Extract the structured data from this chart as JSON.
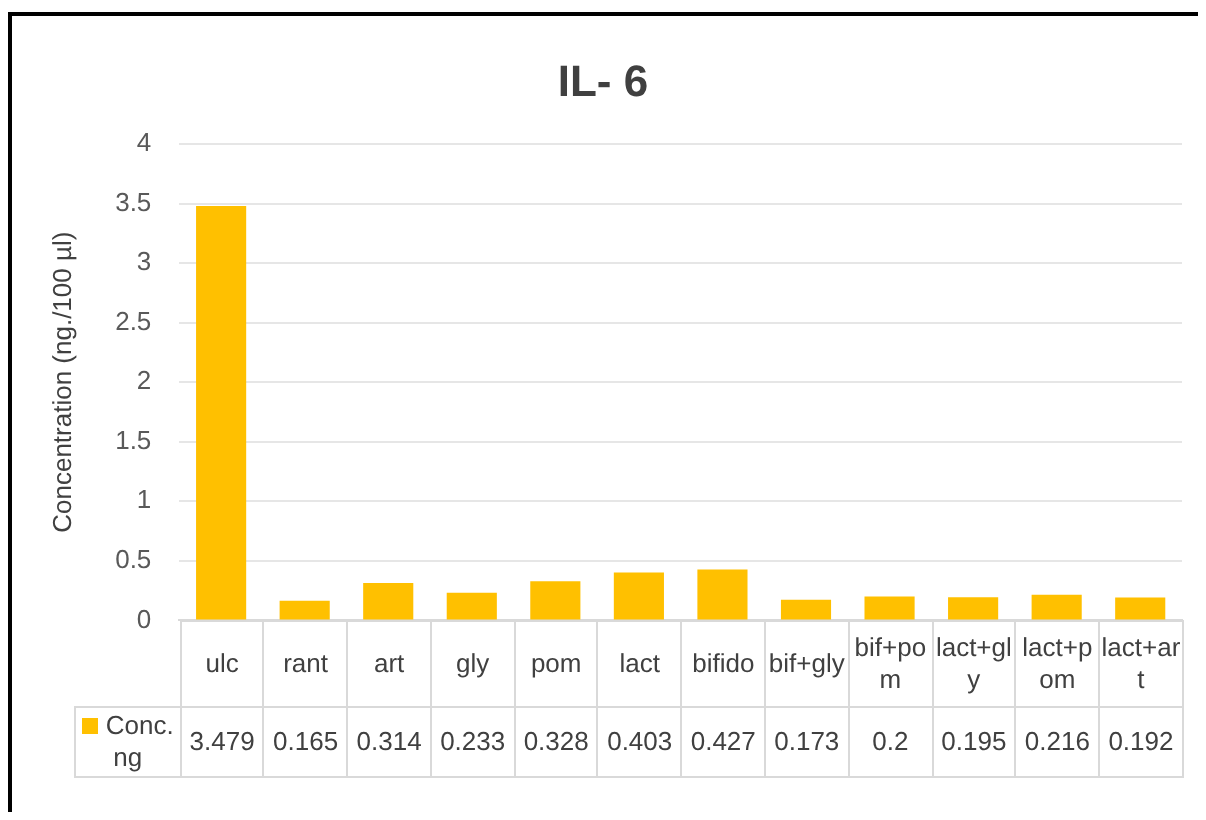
{
  "chart_data": {
    "type": "bar",
    "title": "IL- 6",
    "ylabel": "Concentration (ng./100 µl)",
    "categories": [
      "ulc",
      "rant",
      "art",
      "gly",
      "pom",
      "lact",
      "bifido",
      "bif+gly",
      "bif+pom",
      "lact+gly",
      "lact+pom",
      "lact+art"
    ],
    "series": [
      {
        "name": "Conc. ng",
        "color": "#ffc000",
        "values": [
          3.479,
          0.165,
          0.314,
          0.233,
          0.328,
          0.403,
          0.427,
          0.173,
          0.2,
          0.195,
          0.216,
          0.192
        ]
      }
    ],
    "ylim": [
      0,
      4
    ],
    "yticks": [
      0,
      0.5,
      1,
      1.5,
      2,
      2.5,
      3,
      3.5,
      4
    ],
    "grid": "y",
    "legend": "bottom",
    "data_labels": true
  }
}
